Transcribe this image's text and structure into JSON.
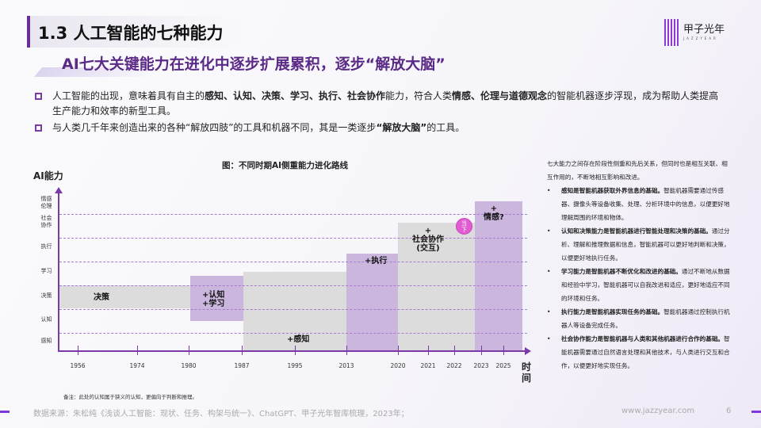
{
  "header": {
    "title": "1.3 人工智能的七种能力",
    "subtitle": "AI七大关键能力在进化中逐步扩展累积，逐步“解放大脑”",
    "logo_text": "甲子光年",
    "logo_sub": "JAZZYEAR"
  },
  "bullets": [
    {
      "parts": [
        "人工智能的出现，意味着具有自主的",
        "感知、认知、决策、学习、执行、社会协作",
        "能力，符合人类",
        "情感、伦理与道德观念",
        "的智能机器逐步浮现，成为帮助人类提高生产能力和效率的新型工具。"
      ]
    },
    {
      "parts": [
        "与人类几千年来创造出来的各种“解放四肢”的工具和机器不同，其是一类逐步",
        "“解放大脑”",
        "的工具。"
      ]
    }
  ],
  "chart_data": {
    "type": "bar",
    "title": "图：不同时期AI侧重能力进化路线",
    "ylabel": "AI能力",
    "xlabel": "时间",
    "x_ticks": [
      "1956",
      "1974",
      "1980",
      "1987",
      "1995",
      "2013",
      "2020",
      "2021",
      "2022",
      "2023",
      "2025"
    ],
    "y_levels": [
      "感知",
      "认知",
      "决策",
      "学习",
      "执行",
      "社会协作",
      "情感伦理"
    ],
    "grid": "dashed horizontal",
    "blocks": [
      {
        "label": "决策",
        "start": "1956",
        "end": "1980",
        "color": "#dcdcdc"
      },
      {
        "label": "+认知\n+学习",
        "start": "1980",
        "end": "1987",
        "color": "#cbb6dd"
      },
      {
        "label": "+感知",
        "start": "1987",
        "end": "2013",
        "color": "#dcdcdc"
      },
      {
        "label": "+执行",
        "start": "2013",
        "end": "2020",
        "color": "#cbb6dd"
      },
      {
        "label": "+\n社会协作\n(交互)",
        "start": "2020",
        "end": "2023",
        "color": "#dcdcdc"
      },
      {
        "label": "+\n情感?",
        "start": "2023",
        "end": "2025",
        "color": "#cbb6dd"
      }
    ],
    "marker": {
      "label": "当下",
      "color": "#e35bd3"
    },
    "axis_color": "#7b3aa8"
  },
  "panel": {
    "intro": "七大能力之间存在阶段性侧重和先后关系，但同时也是相互关联、相互作用的，不断地相互影响和改进。",
    "items": [
      {
        "bold": "感知是智能机器获取外界信息的基础。",
        "text": "智能机器需要通过传感器、摄像头等设备收集、处理、分析环境中的信息，以便更好地理解周围的环境和物体。"
      },
      {
        "bold": "认知和决策能力是智能机器进行智能处理和决策的基础。",
        "text": "通过分析、理解和推理数据和信息，智能机器可以更好地判断和决策，以便更好地执行任务。"
      },
      {
        "bold": "学习能力是智能机器不断优化和改进的基础。",
        "text": "通过不断地从数据和经验中学习，智能机器可以自我改进和适应，更好地适应不同的环境和任务。"
      },
      {
        "bold": "执行能力是智能机器实现任务的基础。",
        "text": "智能机器通过控制执行机器人等设备完成任务。"
      },
      {
        "bold": "社会协作能力是智能机器与人类和其他机器进行合作的基础。",
        "text": "智能机器需要通过自然语言处理和其他技术，与人类进行交互和合作，以便更好地实现任务。"
      }
    ]
  },
  "footer": {
    "note": "备注：此处的认知属于狭义的认知，更偏向于判断和推理。",
    "source": "数据来源：朱松纯《浅谈人工智能：现状、任务、构架与统一》、ChatGPT、甲子光年智库梳理，2023年；",
    "site": "www.jazzyear.com",
    "page": "6"
  }
}
